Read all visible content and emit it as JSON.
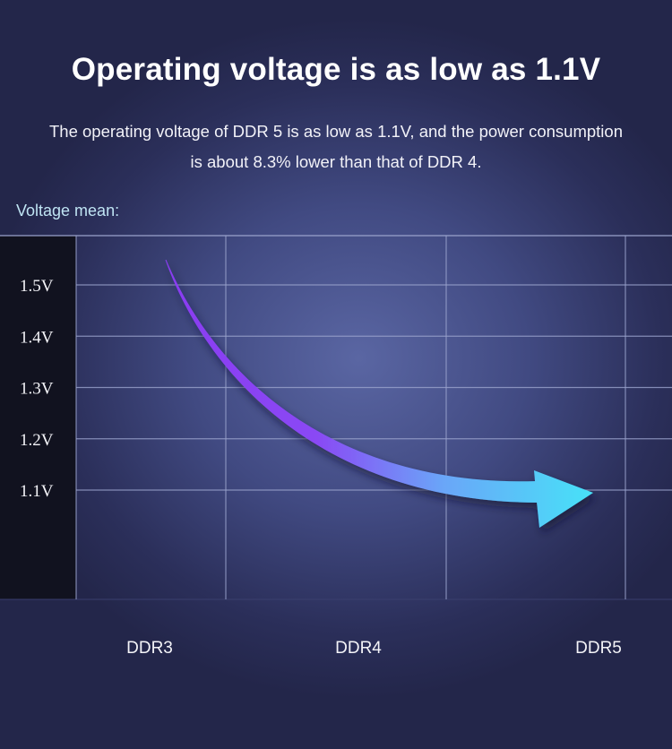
{
  "header": {
    "title": "Operating voltage is as low as 1.1V",
    "subtitle_line1": "The operating voltage of DDR 5 is as low as 1.1V, and the power consumption",
    "subtitle_line2": "is about 8.3% lower than that of DDR 4."
  },
  "chart_data": {
    "type": "line",
    "title": "",
    "ylabel": "Voltage mean:",
    "xlabel": "",
    "categories": [
      "DDR3",
      "DDR4",
      "DDR5"
    ],
    "y_ticks": [
      "1.5V",
      "1.4V",
      "1.3V",
      "1.2V",
      "1.1V"
    ],
    "y_tick_values": [
      1.5,
      1.4,
      1.3,
      1.2,
      1.1
    ],
    "ylim": [
      0.9,
      1.6
    ],
    "series": [
      {
        "values": [
          1.5,
          1.15,
          1.1
        ]
      }
    ],
    "grid": true,
    "legend": "none",
    "colors": {
      "arrow_start": "#8a3cf2",
      "arrow_end": "#47e2f8",
      "grid": "#9aa2cc",
      "axis_panel": "#11121f"
    }
  }
}
